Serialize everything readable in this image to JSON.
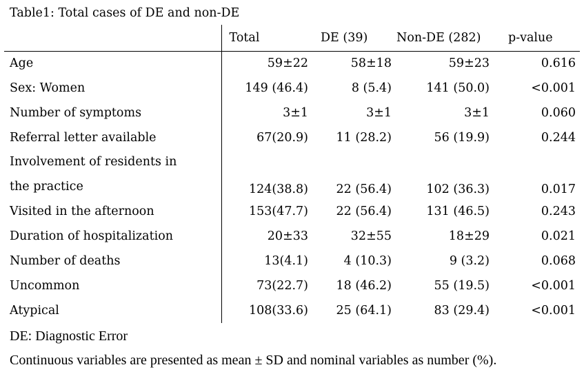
{
  "title": "Table1: Total cases of DE and non-DE",
  "table": {
    "columns": {
      "label": "",
      "total": "Total",
      "de": "DE (39)",
      "non_de": "Non-DE (282)",
      "p_value": "p-value"
    },
    "rows": [
      {
        "label": "Age",
        "total": "59±22",
        "de": "58±18",
        "non_de": "59±23",
        "p_value": "0.616"
      },
      {
        "label": "Sex: Women",
        "total": "149 (46.4)",
        "de": "8 (5.4)",
        "non_de": "141 (50.0)",
        "p_value": "<0.001"
      },
      {
        "label": "Number of symptoms",
        "total": "3±1",
        "de": "3±1",
        "non_de": "3±1",
        "p_value": "0.060"
      },
      {
        "label": "Referral letter available",
        "total": "67(20.9)",
        "de": "11 (28.2)",
        "non_de": "56 (19.9)",
        "p_value": "0.244"
      },
      {
        "label": "Involvement of residents in the practice",
        "total": "124(38.8)",
        "de": "22 (56.4)",
        "non_de": "102 (36.3)",
        "p_value": "0.017"
      },
      {
        "label": "Visited in the afternoon",
        "total": "153(47.7)",
        "de": "22 (56.4)",
        "non_de": "131 (46.5)",
        "p_value": "0.243"
      },
      {
        "label": "Duration of hospitalization",
        "total": "20±33",
        "de": "32±55",
        "non_de": "18±29",
        "p_value": "0.021"
      },
      {
        "label": "Number of deaths",
        "total": "13(4.1)",
        "de": "4 (10.3)",
        "non_de": "9 (3.2)",
        "p_value": "0.068"
      },
      {
        "label": "Uncommon",
        "total": "73(22.7)",
        "de": "18 (46.2)",
        "non_de": "55 (19.5)",
        "p_value": "<0.001"
      },
      {
        "label": "Atypical",
        "total": "108(33.6)",
        "de": "25 (64.1)",
        "non_de": "83 (29.4)",
        "p_value": "<0.001"
      }
    ]
  },
  "footnotes": [
    "DE: Diagnostic Error",
    "Continuous variables are presented as mean ± SD and nominal variables as number (%)."
  ]
}
